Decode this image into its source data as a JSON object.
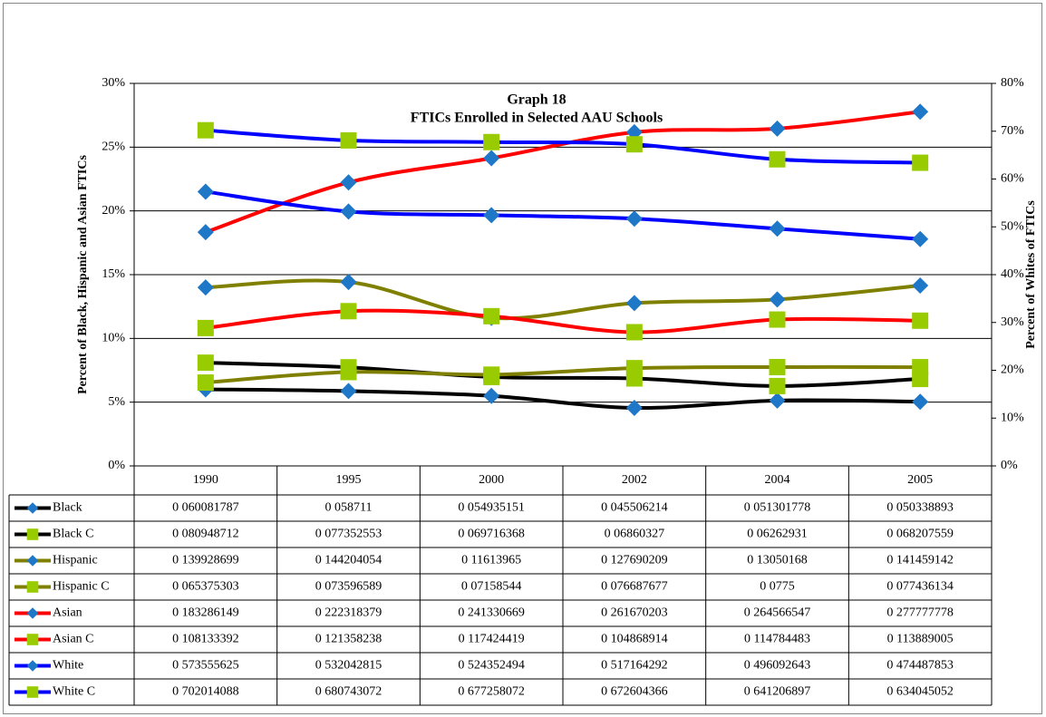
{
  "chart_data": {
    "type": "line",
    "title": "Graph 18",
    "subtitle": "FTICs Enrolled in Selected AAU Schools",
    "y_label": "Percent of Black, Hispanic and Asian FTICs",
    "y2_label": "Percent of Whites of FTICs",
    "categories": [
      "1990",
      "1995",
      "2000",
      "2002",
      "2004",
      "2005"
    ],
    "ylim": [
      0,
      0.3
    ],
    "yticks": [
      {
        "value": 0,
        "label": "0%"
      },
      {
        "value": 0.05,
        "label": "5%"
      },
      {
        "value": 0.1,
        "label": "10%"
      },
      {
        "value": 0.15,
        "label": "15%"
      },
      {
        "value": 0.2,
        "label": "20%"
      },
      {
        "value": 0.25,
        "label": "25%"
      },
      {
        "value": 0.3,
        "label": "30%"
      }
    ],
    "y2lim": [
      0,
      0.8
    ],
    "y2ticks": [
      {
        "value": 0,
        "label": "0%"
      },
      {
        "value": 0.1,
        "label": "10%"
      },
      {
        "value": 0.2,
        "label": "20%"
      },
      {
        "value": 0.3,
        "label": "30%"
      },
      {
        "value": 0.4,
        "label": "40%"
      },
      {
        "value": 0.5,
        "label": "50%"
      },
      {
        "value": 0.6,
        "label": "60%"
      },
      {
        "value": 0.7,
        "label": "70%"
      },
      {
        "value": 0.8,
        "label": "80%"
      }
    ],
    "grid": true,
    "series": [
      {
        "name": "Black",
        "color": "#000000",
        "marker": "diamond",
        "marker_color": "#1f77c8",
        "values": [
          0.060081787,
          0.058711,
          0.054935151,
          0.045506214,
          0.051301778,
          0.050338893
        ],
        "value_labels": [
          "0 060081787",
          "0 058711",
          "0 054935151",
          "0 045506214",
          "0 051301778",
          "0 050338893"
        ]
      },
      {
        "name": "Black C",
        "color": "#000000",
        "marker": "square",
        "marker_color": "#99cc00",
        "values": [
          0.080948712,
          0.077352553,
          0.069716368,
          0.06860327,
          0.06262931,
          0.068207559
        ],
        "value_labels": [
          "0 080948712",
          "0 077352553",
          "0 069716368",
          "0 06860327",
          "0 06262931",
          "0 068207559"
        ]
      },
      {
        "name": "Hispanic",
        "color": "#808000",
        "marker": "diamond",
        "marker_color": "#1f77c8",
        "values": [
          0.139928699,
          0.144204054,
          0.11613965,
          0.127690209,
          0.13050168,
          0.141459142
        ],
        "value_labels": [
          "0 139928699",
          "0 144204054",
          "0 11613965",
          "0 127690209",
          "0 13050168",
          "0 141459142"
        ]
      },
      {
        "name": "Hispanic C",
        "color": "#808000",
        "marker": "square",
        "marker_color": "#99cc00",
        "values": [
          0.065375303,
          0.073596589,
          0.07158544,
          0.076687677,
          0.0775,
          0.077436134
        ],
        "value_labels": [
          "0 065375303",
          "0 073596589",
          "0 07158544",
          "0 076687677",
          "0 0775",
          "0 077436134"
        ]
      },
      {
        "name": "Asian",
        "color": "#ff0000",
        "marker": "diamond",
        "marker_color": "#1f77c8",
        "values": [
          0.183286149,
          0.222318379,
          0.241330669,
          0.261670203,
          0.264566547,
          0.277777778
        ],
        "value_labels": [
          "0 183286149",
          "0 222318379",
          "0 241330669",
          "0 261670203",
          "0 264566547",
          "0 277777778"
        ]
      },
      {
        "name": "Asian C",
        "color": "#ff0000",
        "marker": "square",
        "marker_color": "#99cc00",
        "values": [
          0.108133392,
          0.121358238,
          0.117424419,
          0.104868914,
          0.114784483,
          0.113889005
        ],
        "value_labels": [
          "0 108133392",
          "0 121358238",
          "0 117424419",
          "0 104868914",
          "0 114784483",
          "0 113889005"
        ]
      },
      {
        "name": "White",
        "color": "#0000ff",
        "marker": "diamond",
        "marker_color": "#1f77c8",
        "axis": "y2",
        "values": [
          0.573555625,
          0.532042815,
          0.524352494,
          0.517164292,
          0.496092643,
          0.474487853
        ],
        "value_labels": [
          "0 573555625",
          "0 532042815",
          "0 524352494",
          "0 517164292",
          "0 496092643",
          "0 474487853"
        ]
      },
      {
        "name": "White C",
        "color": "#0000ff",
        "marker": "square",
        "marker_color": "#99cc00",
        "axis": "y2",
        "values": [
          0.702014088,
          0.680743072,
          0.677258072,
          0.672604366,
          0.641206897,
          0.634045052
        ],
        "value_labels": [
          "0 702014088",
          "0 680743072",
          "0 677258072",
          "0 672604366",
          "0 641206897",
          "0 634045052"
        ]
      }
    ]
  }
}
